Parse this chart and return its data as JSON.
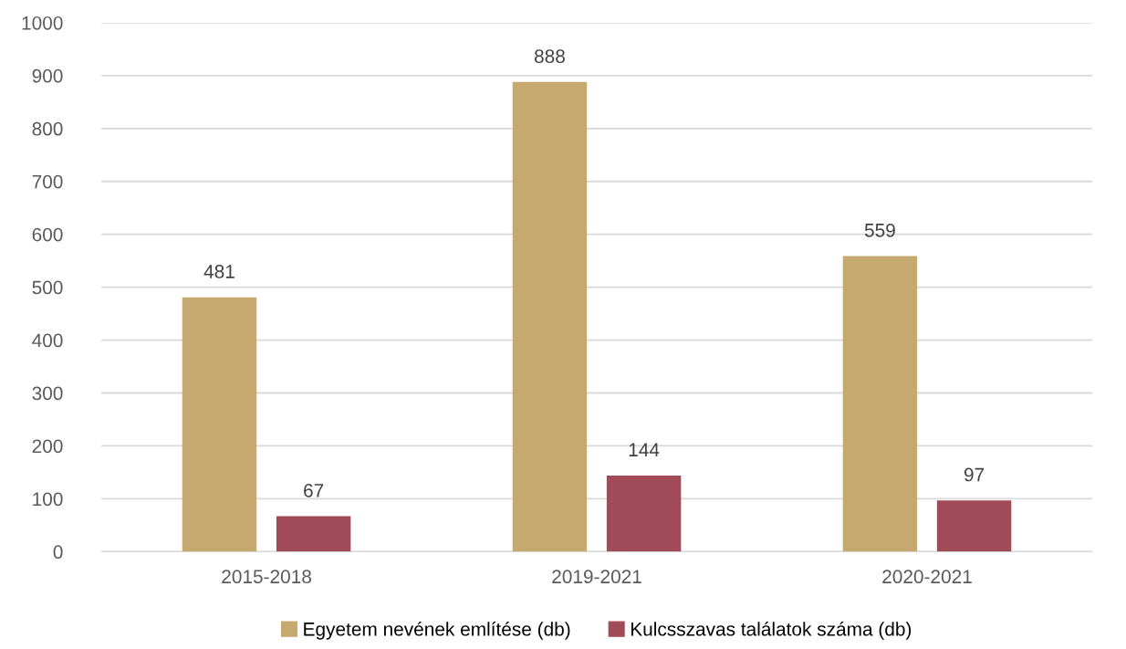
{
  "chart_data": {
    "type": "bar",
    "categories": [
      "2015-2018",
      "2019-2021",
      "2020-2021"
    ],
    "series": [
      {
        "name": "Egyetem nevének említése (db)",
        "color": "#c5a96f",
        "values": [
          481,
          888,
          559
        ]
      },
      {
        "name": "Kulcsszavas találatok száma (db)",
        "color": "#a24b58",
        "values": [
          67,
          144,
          97
        ]
      }
    ],
    "ylim": [
      0,
      1000
    ],
    "yticks": [
      0,
      100,
      200,
      300,
      400,
      500,
      600,
      700,
      800,
      900,
      1000
    ],
    "grid": "y",
    "legend": "bottom",
    "data_labels": true
  }
}
